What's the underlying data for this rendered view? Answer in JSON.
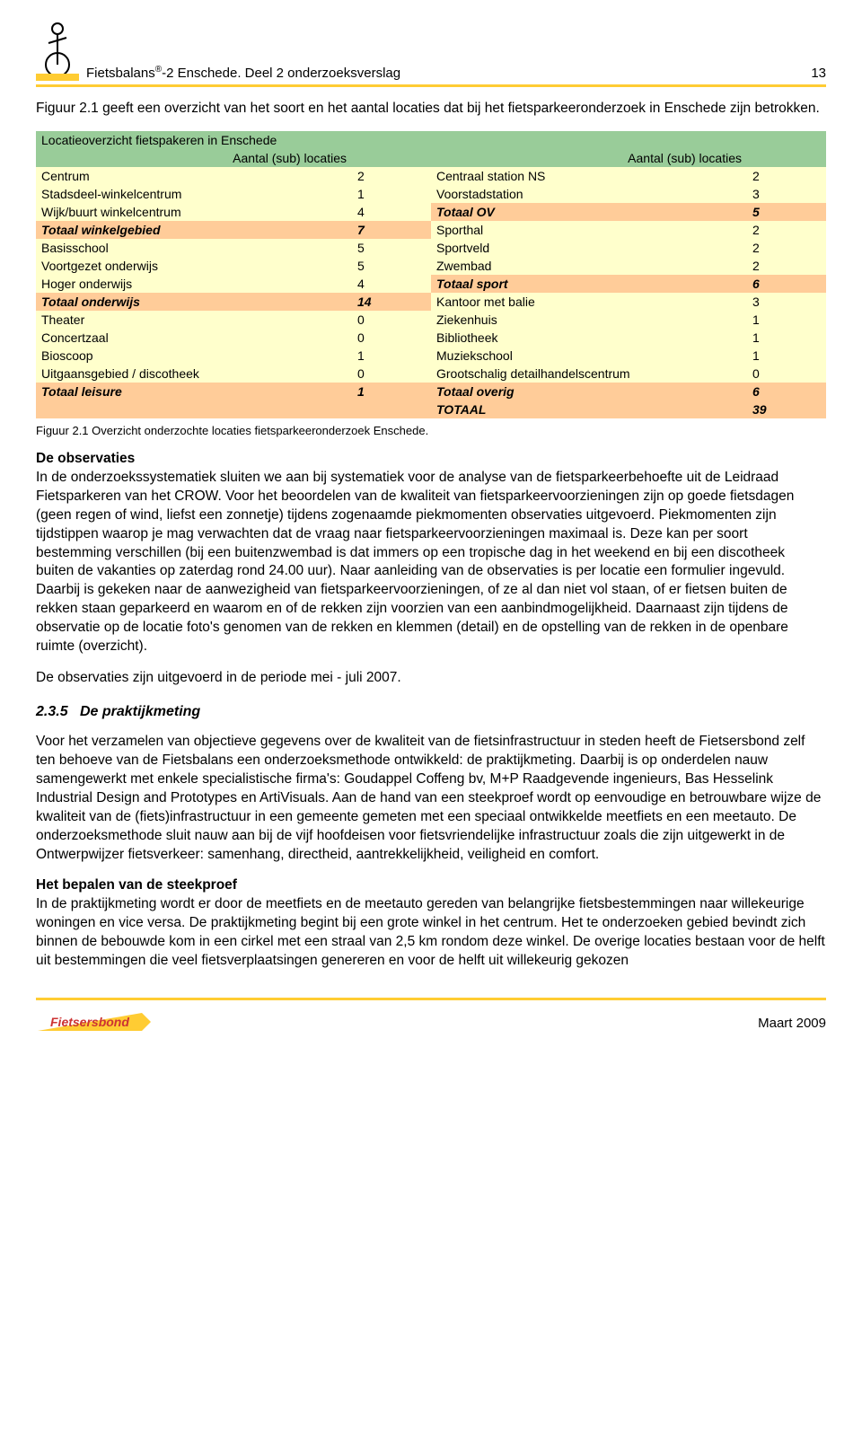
{
  "header": {
    "title_prefix": "Fietsbalans",
    "title_sup": "®",
    "title_rest": "-2 Enschede. Deel 2 onderzoeksverslag",
    "page_number": "13"
  },
  "intro_para": "Figuur 2.1 geeft een overzicht van het soort en het aantal locaties dat bij het fietsparkeeronderzoek in Enschede zijn betrokken.",
  "table": {
    "title": "Locatieoverzicht fietspakeren in Enschede",
    "col_header_left": "Aantal (sub) locaties",
    "col_header_right": "Aantal (sub) locaties",
    "header_bg": "#99cc99",
    "plain_bg": "#ffffcc",
    "bold_bg": "#ffcc99",
    "rows": [
      {
        "style": "plain",
        "l": "Centrum",
        "lv": "2",
        "r": "Centraal station NS",
        "rv": "2"
      },
      {
        "style": "plain",
        "l": "Stadsdeel-winkelcentrum",
        "lv": "1",
        "r": "Voorstadstation",
        "rv": "3"
      },
      {
        "style": "mixed",
        "l": "Wijk/buurt winkelcentrum",
        "lv": "4",
        "r": "Totaal OV",
        "rv": "5",
        "rbold": true
      },
      {
        "style": "mixed",
        "l": "Totaal winkelgebied",
        "lv": "7",
        "r": "Sporthal",
        "rv": "2",
        "lbold": true
      },
      {
        "style": "plain",
        "l": "Basisschool",
        "lv": "5",
        "r": "Sportveld",
        "rv": "2"
      },
      {
        "style": "plain",
        "l": "Voortgezet onderwijs",
        "lv": "5",
        "r": "Zwembad",
        "rv": "2"
      },
      {
        "style": "mixed",
        "l": "Hoger onderwijs",
        "lv": "4",
        "r": "Totaal sport",
        "rv": "6",
        "rbold": true
      },
      {
        "style": "mixed",
        "l": "Totaal onderwijs",
        "lv": "14",
        "r": "Kantoor met balie",
        "rv": "3",
        "lbold": true
      },
      {
        "style": "plain",
        "l": "Theater",
        "lv": "0",
        "r": "Ziekenhuis",
        "rv": "1"
      },
      {
        "style": "plain",
        "l": "Concertzaal",
        "lv": "0",
        "r": "Bibliotheek",
        "rv": "1"
      },
      {
        "style": "plain",
        "l": "Bioscoop",
        "lv": "1",
        "r": "Muziekschool",
        "rv": "1"
      },
      {
        "style": "plain",
        "l": "Uitgaansgebied / discotheek",
        "lv": "0",
        "r": "Grootschalig detailhandelscentrum",
        "rv": "0"
      },
      {
        "style": "bold",
        "l": "Totaal leisure",
        "lv": "1",
        "r": "Totaal overig",
        "rv": "6"
      },
      {
        "style": "bold",
        "l": "",
        "lv": "",
        "r": "TOTAAL",
        "rv": "39"
      }
    ]
  },
  "caption": "Figuur 2.1 Overzicht onderzochte locaties fietsparkeeronderzoek Enschede.",
  "obs_heading": "De observaties",
  "obs_text": "In de onderzoekssystematiek sluiten we aan bij systematiek voor de analyse van de fietsparkeerbehoefte uit de Leidraad Fietsparkeren van het CROW. Voor het beoordelen van de kwaliteit van fietsparkeervoorzieningen zijn op goede fietsdagen (geen regen of wind, liefst een zonnetje) tijdens zogenaamde piekmomenten observaties uitgevoerd. Piekmomenten zijn tijdstippen waarop je mag verwachten dat de vraag naar fietsparkeervoorzieningen maximaal is. Deze kan per soort bestemming verschillen (bij een buitenzwembad is dat immers op een tropische dag in het weekend en bij een discotheek buiten de vakanties op zaterdag rond 24.00 uur). Naar aanleiding van de observaties is per locatie een formulier ingevuld. Daarbij is gekeken naar de aanwezigheid van fietsparkeervoorzieningen, of ze al dan niet vol staan, of er fietsen buiten de rekken staan geparkeerd en waarom en of de rekken zijn voorzien van een aanbindmogelijkheid. Daarnaast zijn tijdens de observatie op de locatie foto's genomen van de rekken en klemmen (detail) en de opstelling van de rekken in de openbare ruimte (overzicht).",
  "obs_period": "De observaties zijn uitgevoerd in de periode mei - juli 2007.",
  "section_num": "2.3.5",
  "section_title": "De praktijkmeting",
  "prak_text": "Voor het verzamelen van objectieve gegevens over de kwaliteit van de fietsinfrastructuur in steden heeft de Fietsersbond zelf ten behoeve van de Fietsbalans een onderzoeksmethode ontwikkeld: de praktijkmeting. Daarbij is op onderdelen nauw samengewerkt met enkele specialistische firma's: Goudappel Coffeng bv, M+P Raadgevende ingenieurs, Bas Hesselink Industrial Design and Prototypes en ArtiVisuals. Aan de hand van een steekproef wordt op eenvoudige en betrouwbare wijze de kwaliteit van de (fiets)infrastructuur in een gemeente gemeten met een speciaal ontwikkelde meetfiets en een meetauto. De onderzoeksmethode sluit nauw aan bij de vijf hoofdeisen voor fietsvriendelijke infrastructuur zoals die zijn uitgewerkt in de Ontwerpwijzer fietsverkeer: samenhang, directheid, aantrekkelijkheid, veiligheid en comfort.",
  "steek_heading": "Het bepalen van de steekproef",
  "steek_text": "In de praktijkmeting wordt er door de meetfiets en de meetauto gereden van belangrijke fietsbestemmingen naar willekeurige woningen en vice versa. De praktijkmeting begint bij een grote winkel in het centrum. Het te onderzoeken gebied bevindt zich binnen de bebouwde kom in een cirkel met een straal van 2,5 km rondom deze winkel. De overige locaties bestaan voor de helft uit bestemmingen die veel fietsverplaatsingen genereren en voor de helft uit willekeurig gekozen",
  "footer": {
    "brand": "Fietsersbond",
    "date": "Maart 2009"
  },
  "colors": {
    "accent": "#ffcc33",
    "logo_red": "#cc3333",
    "logo_yellow": "#ffcc33"
  }
}
